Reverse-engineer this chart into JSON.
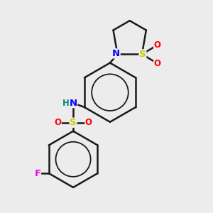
{
  "background_color": "#ececec",
  "bond_color": "#1a1a1a",
  "atom_colors": {
    "N": "#0000ff",
    "S": "#cccc00",
    "O": "#ff0000",
    "F": "#ee00ee",
    "H": "#008888",
    "C": "#1a1a1a"
  },
  "figsize": [
    3.0,
    3.0
  ],
  "dpi": 100
}
